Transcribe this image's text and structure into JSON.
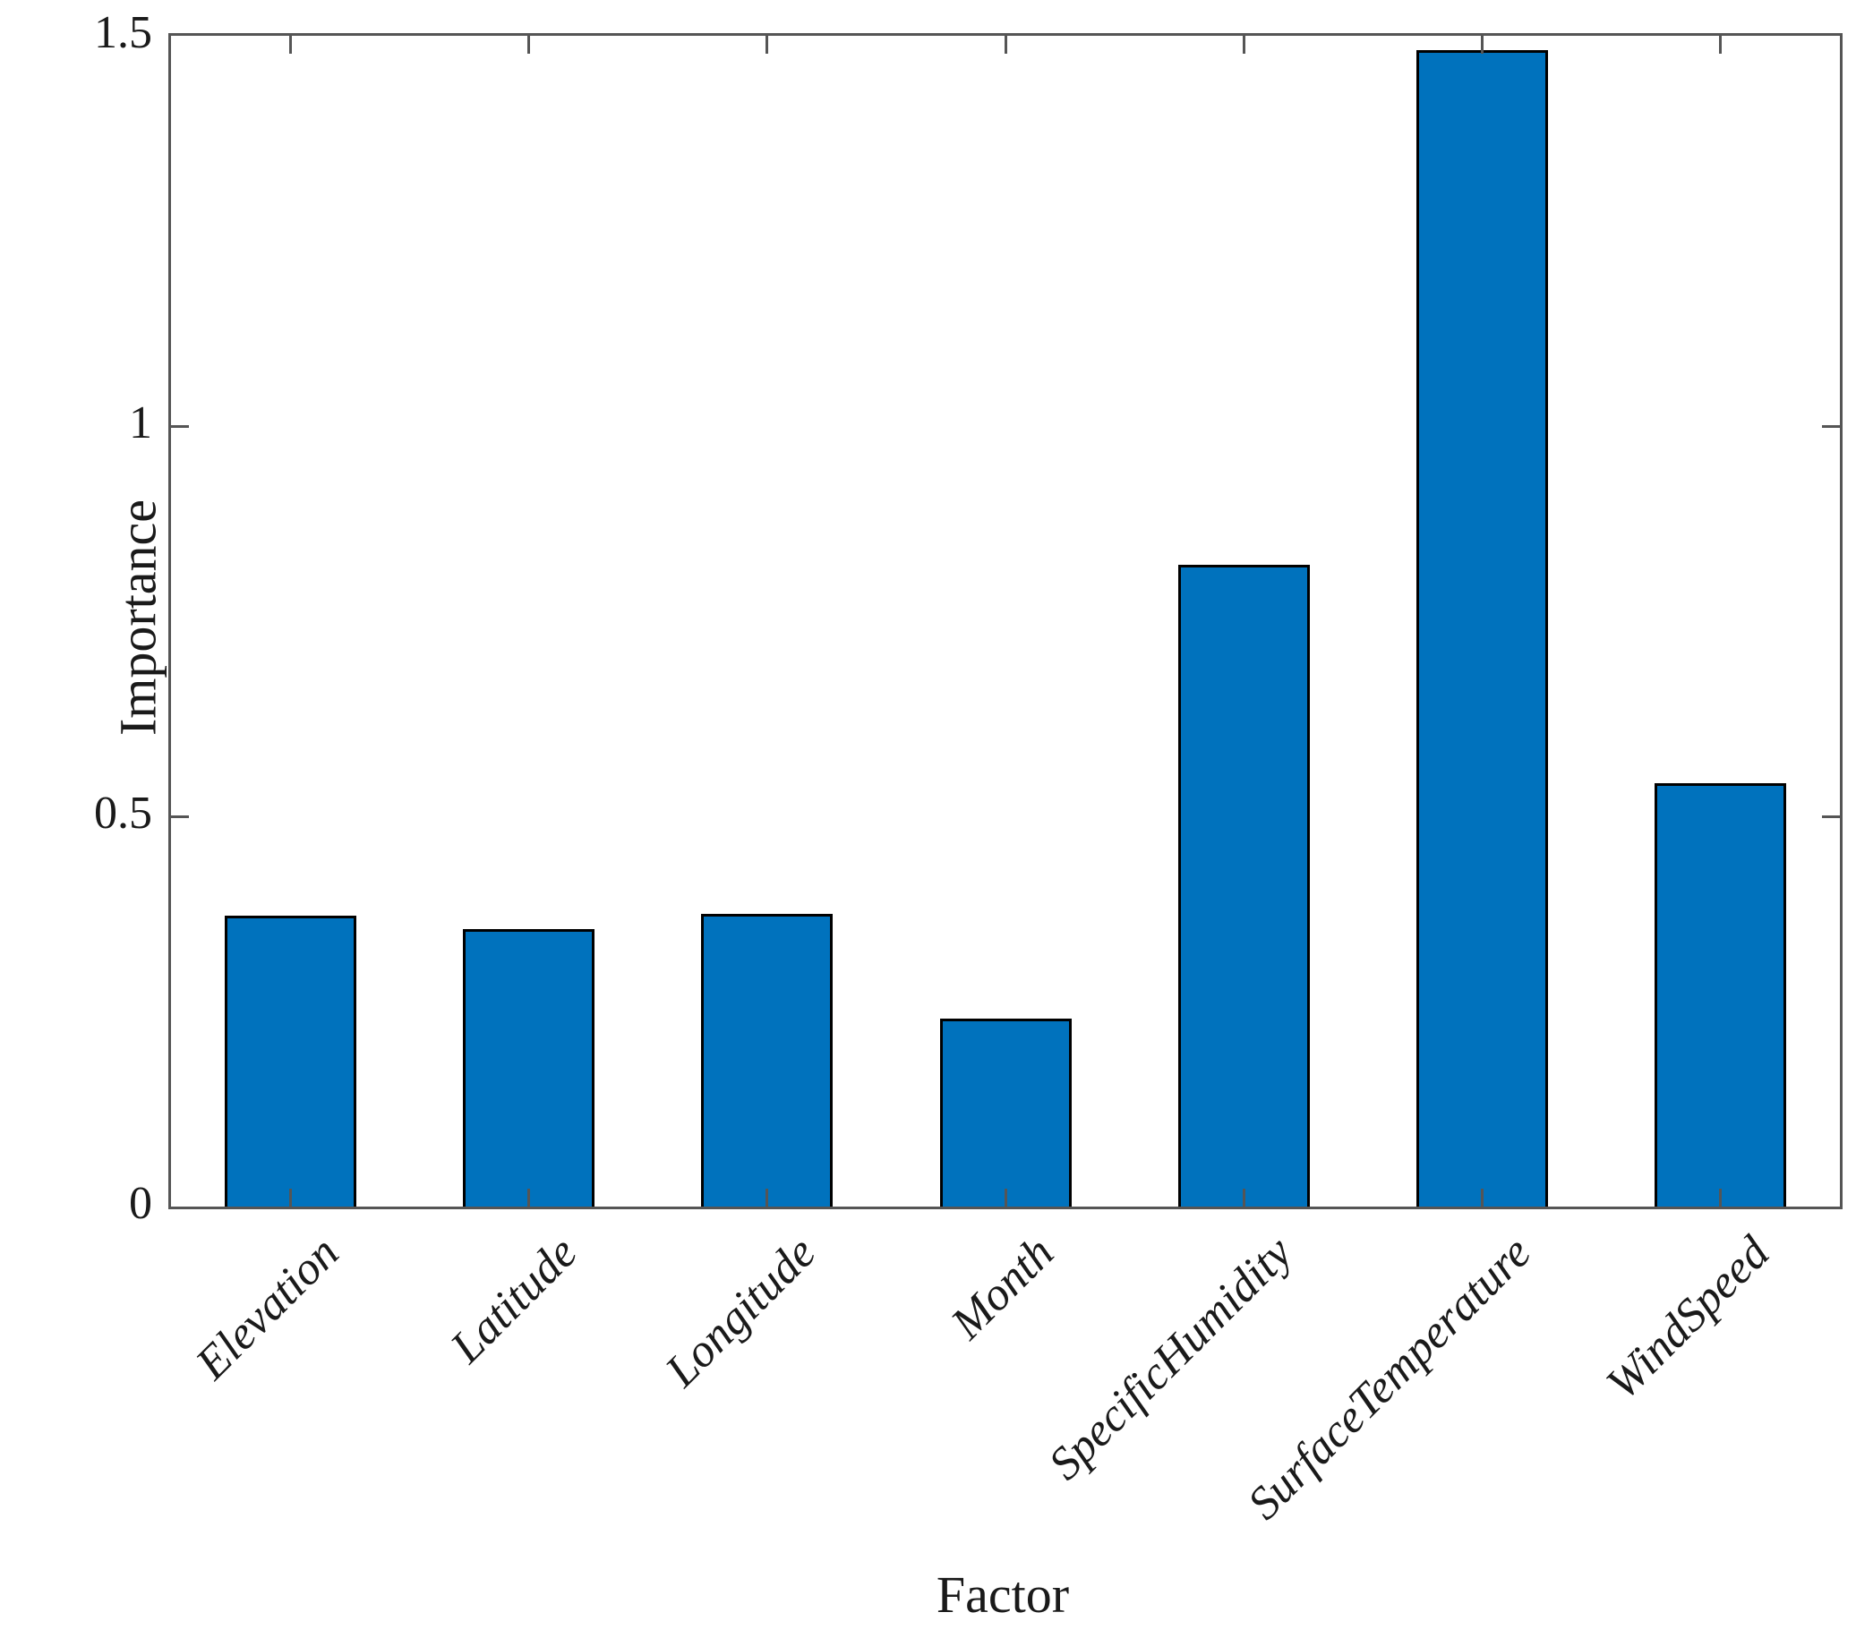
{
  "chart_data": {
    "type": "bar",
    "title": "",
    "xlabel": "Factor",
    "ylabel": "Importance",
    "categories": [
      "Elevation",
      "Latitude",
      "Longitude",
      "Month",
      "SpecificHumidity",
      "SurfaceTemperature",
      "WindSpeed"
    ],
    "values": [
      0.373,
      0.356,
      0.375,
      0.241,
      0.822,
      1.482,
      0.542
    ],
    "ylim": [
      0,
      1.5
    ],
    "yticks": [
      0,
      0.5,
      1,
      1.5
    ],
    "ytick_labels": [
      "0",
      "0.5",
      "1",
      "1.5"
    ],
    "grid": false,
    "legend": null,
    "bar_color": "#0072BD",
    "bar_edge_color": "#000000",
    "axis_color": "#555555",
    "text_color": "#1a1a1a",
    "tick_direction": "in",
    "box": "on",
    "x_tick_label_rotation_deg": 45
  }
}
